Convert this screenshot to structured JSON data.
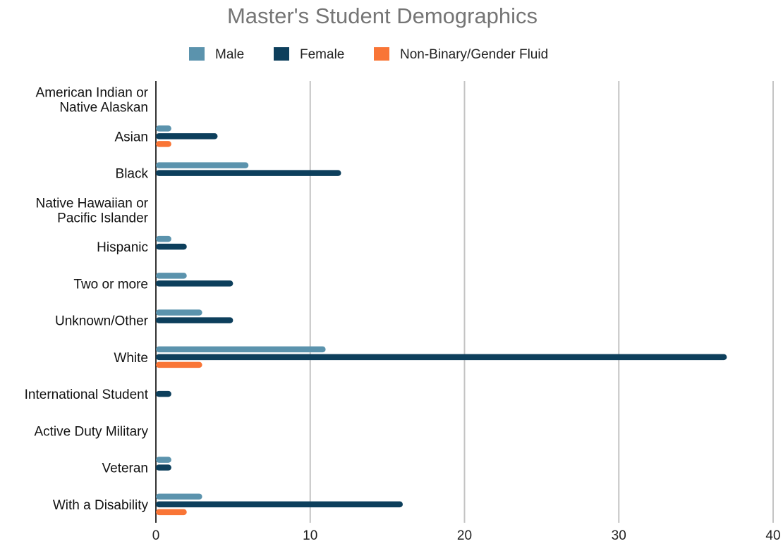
{
  "chart_data": {
    "type": "bar",
    "orientation": "horizontal",
    "title": "Master's Student Demographics",
    "categories": [
      "American Indian or\nNative Alaskan",
      "Asian",
      "Black",
      "Native Hawaiian or\nPacific Islander",
      "Hispanic",
      "Two or more",
      "Unknown/Other",
      "White",
      "International Student",
      "Active Duty Military",
      "Veteran",
      "With a Disability"
    ],
    "series": [
      {
        "name": "Male",
        "color": "#5B93AD",
        "values": [
          0,
          1,
          6,
          0,
          1,
          2,
          3,
          11,
          0,
          0,
          1,
          3
        ]
      },
      {
        "name": "Female",
        "color": "#0D3F5C",
        "values": [
          0,
          4,
          12,
          0,
          2,
          5,
          5,
          37,
          1,
          0,
          1,
          16
        ]
      },
      {
        "name": "Non-Binary/Gender Fluid",
        "color": "#F97536",
        "values": [
          0,
          1,
          0,
          0,
          0,
          0,
          0,
          3,
          0,
          0,
          0,
          2
        ]
      }
    ],
    "xlim": [
      0,
      40
    ],
    "xticks": [
      0,
      10,
      20,
      30,
      40
    ],
    "grid": true,
    "legend_position": "top"
  }
}
